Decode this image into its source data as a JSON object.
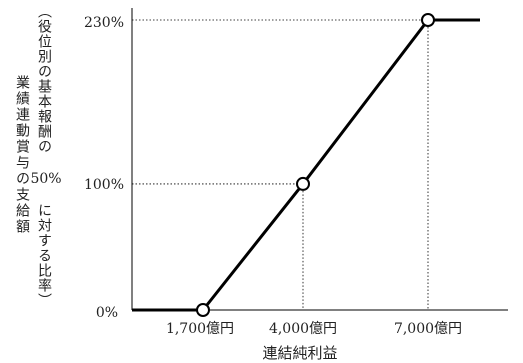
{
  "chart_data": {
    "type": "line",
    "title": "",
    "xlabel": "連結純利益",
    "ylabel": {
      "line1": "業績連動賞与の支給額",
      "line2": "（役位別の基本報酬の",
      "line2_num": "50%",
      "line2_tail": "に対する比率）"
    },
    "x_ticks": [
      "1,700億円",
      "4,000億円",
      "7,000億円"
    ],
    "y_ticks": [
      "0%",
      "100%",
      "230%"
    ],
    "xlim": [
      0,
      9000
    ],
    "ylim": [
      0,
      230
    ],
    "grid": false,
    "series": [
      {
        "values": [
          {
            "x": 0,
            "y": 0
          },
          {
            "x": 1700,
            "y": 0
          },
          {
            "x": 4000,
            "y": 100
          },
          {
            "x": 7000,
            "y": 230
          },
          {
            "x": 8300,
            "y": 230
          }
        ]
      }
    ],
    "markers": [
      {
        "x": 1700,
        "y": 0
      },
      {
        "x": 4000,
        "y": 100
      },
      {
        "x": 7000,
        "y": 230
      }
    ],
    "guides": [
      {
        "x": 4000,
        "y": 100
      },
      {
        "x": 7000,
        "y": 230
      }
    ]
  }
}
